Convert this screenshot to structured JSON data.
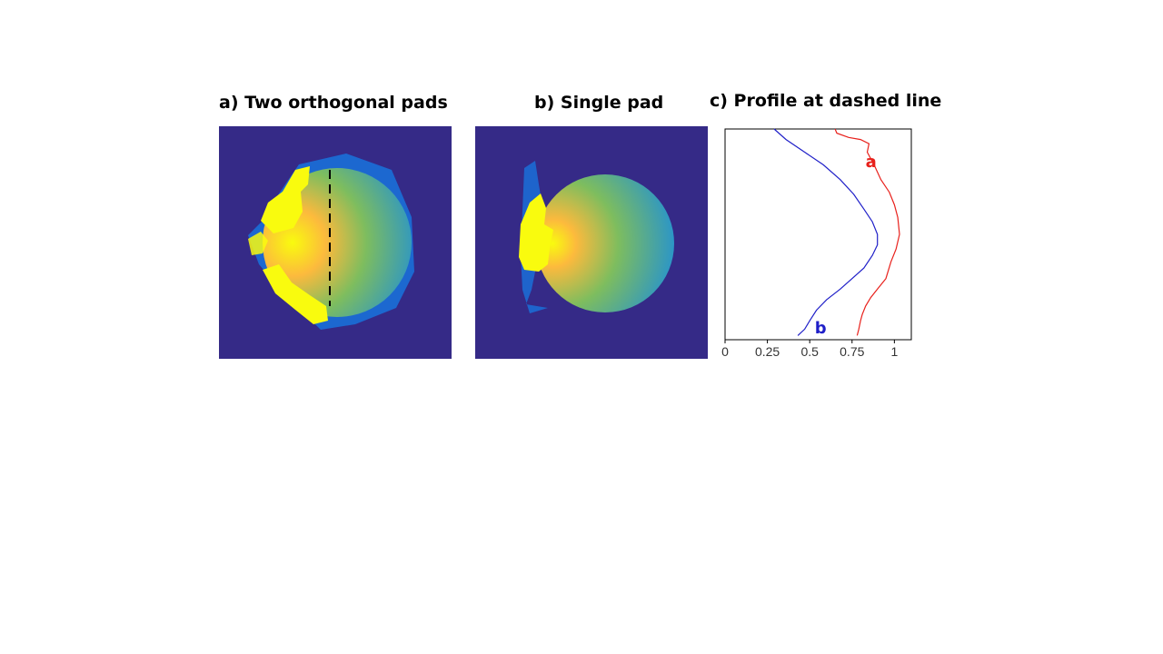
{
  "titles": {
    "a": "a) Two orthogonal pads",
    "b": "b) Single pad",
    "c": "c) Profile at dashed line"
  },
  "colors": {
    "background": "#352a87",
    "hot": "#f9fb0e",
    "warm": "#fcba3d",
    "mid": "#7ebd5e",
    "cool": "#1e8fd8",
    "edge": "#1a6fd8",
    "dashed_line": "#000000",
    "series_a": "#e8201b",
    "series_b": "#1f1fc8"
  },
  "chart_data": {
    "type": "line",
    "title": "c) Profile at dashed line",
    "xlabel": "",
    "ylabel": "",
    "xlim": [
      0,
      1.1
    ],
    "ylim": [
      0,
      1
    ],
    "x_ticks": [
      0,
      0.25,
      0.5,
      0.75,
      1
    ],
    "x_tick_labels": [
      "0",
      "0.25",
      "0.5",
      "0.75",
      "1"
    ],
    "orientation": "vertical-profile",
    "series": [
      {
        "name": "a",
        "color": "#e8201b",
        "x": [
          0.65,
          0.66,
          0.73,
          0.8,
          0.85,
          0.84,
          0.88,
          0.92,
          0.97,
          1.0,
          1.02,
          1.03,
          1.01,
          0.98,
          0.95,
          0.9,
          0.86,
          0.83,
          0.81,
          0.8,
          0.79,
          0.78
        ],
        "y": [
          0.0,
          0.02,
          0.04,
          0.05,
          0.07,
          0.11,
          0.17,
          0.24,
          0.3,
          0.36,
          0.42,
          0.5,
          0.57,
          0.63,
          0.71,
          0.76,
          0.8,
          0.84,
          0.88,
          0.91,
          0.95,
          0.98
        ]
      },
      {
        "name": "b",
        "color": "#1f1fc8",
        "x": [
          0.29,
          0.36,
          0.47,
          0.58,
          0.68,
          0.76,
          0.82,
          0.87,
          0.9,
          0.9,
          0.87,
          0.82,
          0.75,
          0.68,
          0.6,
          0.54,
          0.5,
          0.47,
          0.43
        ],
        "y": [
          0.0,
          0.05,
          0.11,
          0.17,
          0.24,
          0.31,
          0.38,
          0.44,
          0.5,
          0.55,
          0.6,
          0.66,
          0.71,
          0.76,
          0.81,
          0.86,
          0.91,
          0.95,
          0.98
        ]
      }
    ]
  }
}
